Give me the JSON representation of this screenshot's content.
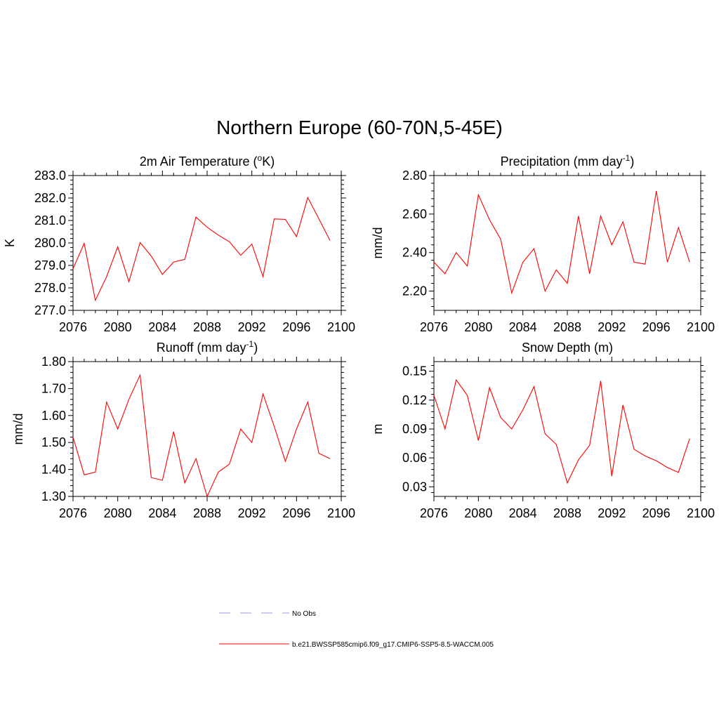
{
  "figure": {
    "title": "Northern Europe (60-70N,5-45E)"
  },
  "chart_data": [
    {
      "id": "temp",
      "type": "line",
      "title": "2m Air Temperature (°K)",
      "title_parts": [
        "2m Air Temperature (",
        "o",
        "K)"
      ],
      "ylabel": "K",
      "xlabel": "",
      "xlim": [
        2076,
        2100
      ],
      "ylim": [
        277.0,
        283.0
      ],
      "xticks": [
        2076,
        2080,
        2084,
        2088,
        2092,
        2096,
        2100
      ],
      "yticks": [
        277.0,
        278.0,
        279.0,
        280.0,
        281.0,
        282.0,
        283.0
      ],
      "ytick_labels": [
        "277.0",
        "278.0",
        "279.0",
        "280.0",
        "281.0",
        "282.0",
        "283.0"
      ],
      "x": [
        2076,
        2077,
        2078,
        2079,
        2080,
        2081,
        2082,
        2083,
        2084,
        2085,
        2086,
        2087,
        2088,
        2089,
        2090,
        2091,
        2092,
        2093,
        2094,
        2095,
        2096,
        2097,
        2098,
        2099
      ],
      "series": [
        {
          "name": "b.e21.BWSSP585cmip6.f09_g17.CMIP6-SSP5-8.5-WACCM.005",
          "color": "#ff0000",
          "values": [
            278.85,
            279.98,
            277.45,
            278.5,
            279.83,
            278.27,
            280.02,
            279.42,
            278.6,
            279.15,
            279.27,
            281.15,
            280.7,
            280.35,
            280.05,
            279.45,
            279.95,
            278.5,
            281.07,
            281.05,
            280.28,
            282.02,
            281.07,
            280.1
          ]
        }
      ]
    },
    {
      "id": "precip",
      "type": "line",
      "title": "Precipitation (mm day-1)",
      "title_parts": [
        "Precipitation (mm day",
        "-1",
        ")"
      ],
      "ylabel": "mm/d",
      "xlabel": "",
      "xlim": [
        2076,
        2100
      ],
      "ylim": [
        2.1,
        2.8
      ],
      "xticks": [
        2076,
        2080,
        2084,
        2088,
        2092,
        2096,
        2100
      ],
      "yticks": [
        2.2,
        2.4,
        2.6,
        2.8
      ],
      "ytick_labels": [
        "2.20",
        "2.40",
        "2.60",
        "2.80"
      ],
      "x": [
        2076,
        2077,
        2078,
        2079,
        2080,
        2081,
        2082,
        2083,
        2084,
        2085,
        2086,
        2087,
        2088,
        2089,
        2090,
        2091,
        2092,
        2093,
        2094,
        2095,
        2096,
        2097,
        2098,
        2099
      ],
      "series": [
        {
          "name": "b.e21.BWSSP585cmip6.f09_g17.CMIP6-SSP5-8.5-WACCM.005",
          "color": "#ff0000",
          "values": [
            2.35,
            2.29,
            2.4,
            2.33,
            2.7,
            2.57,
            2.47,
            2.19,
            2.35,
            2.42,
            2.2,
            2.31,
            2.24,
            2.59,
            2.29,
            2.59,
            2.44,
            2.56,
            2.35,
            2.34,
            2.72,
            2.35,
            2.53,
            2.35
          ]
        }
      ]
    },
    {
      "id": "runoff",
      "type": "line",
      "title": "Runoff (mm day-1)",
      "title_parts": [
        "Runoff (mm day",
        "-1",
        ")"
      ],
      "ylabel": "mm/d",
      "xlabel": "",
      "xlim": [
        2076,
        2100
      ],
      "ylim": [
        1.3,
        1.8
      ],
      "xticks": [
        2076,
        2080,
        2084,
        2088,
        2092,
        2096,
        2100
      ],
      "yticks": [
        1.3,
        1.4,
        1.5,
        1.6,
        1.7,
        1.8
      ],
      "ytick_labels": [
        "1.30",
        "1.40",
        "1.50",
        "1.60",
        "1.70",
        "1.80"
      ],
      "x": [
        2076,
        2077,
        2078,
        2079,
        2080,
        2081,
        2082,
        2083,
        2084,
        2085,
        2086,
        2087,
        2088,
        2089,
        2090,
        2091,
        2092,
        2093,
        2094,
        2095,
        2096,
        2097,
        2098,
        2099
      ],
      "series": [
        {
          "name": "b.e21.BWSSP585cmip6.f09_g17.CMIP6-SSP5-8.5-WACCM.005",
          "color": "#ff0000",
          "values": [
            1.52,
            1.38,
            1.39,
            1.65,
            1.55,
            1.66,
            1.75,
            1.37,
            1.36,
            1.54,
            1.35,
            1.44,
            1.3,
            1.39,
            1.42,
            1.55,
            1.5,
            1.68,
            1.56,
            1.43,
            1.55,
            1.65,
            1.46,
            1.44
          ]
        }
      ]
    },
    {
      "id": "snow",
      "type": "line",
      "title": "Snow Depth (m)",
      "title_parts": [
        "Snow Depth (m)",
        "",
        ""
      ],
      "ylabel": "m",
      "xlabel": "",
      "xlim": [
        2076,
        2100
      ],
      "ylim": [
        0.02,
        0.16
      ],
      "xticks": [
        2076,
        2080,
        2084,
        2088,
        2092,
        2096,
        2100
      ],
      "yticks": [
        0.03,
        0.06,
        0.09,
        0.12,
        0.15
      ],
      "ytick_labels": [
        "0.03",
        "0.06",
        "0.09",
        "0.12",
        "0.15"
      ],
      "x": [
        2076,
        2077,
        2078,
        2079,
        2080,
        2081,
        2082,
        2083,
        2084,
        2085,
        2086,
        2087,
        2088,
        2089,
        2090,
        2091,
        2092,
        2093,
        2094,
        2095,
        2096,
        2097,
        2098,
        2099
      ],
      "series": [
        {
          "name": "b.e21.BWSSP585cmip6.f09_g17.CMIP6-SSP5-8.5-WACCM.005",
          "color": "#ff0000",
          "values": [
            0.125,
            0.09,
            0.141,
            0.125,
            0.078,
            0.133,
            0.102,
            0.09,
            0.11,
            0.134,
            0.085,
            0.074,
            0.034,
            0.058,
            0.073,
            0.14,
            0.041,
            0.115,
            0.069,
            0.062,
            0.057,
            0.05,
            0.045,
            0.08
          ]
        }
      ]
    }
  ],
  "legend": {
    "entries": [
      {
        "label": "No Obs",
        "color": "#b0b0e8",
        "style": "dashed"
      },
      {
        "label": "b.e21.BWSSP585cmip6.f09_g17.CMIP6-SSP5-8.5-WACCM.005",
        "color": "#ff0000",
        "style": "solid"
      }
    ]
  }
}
